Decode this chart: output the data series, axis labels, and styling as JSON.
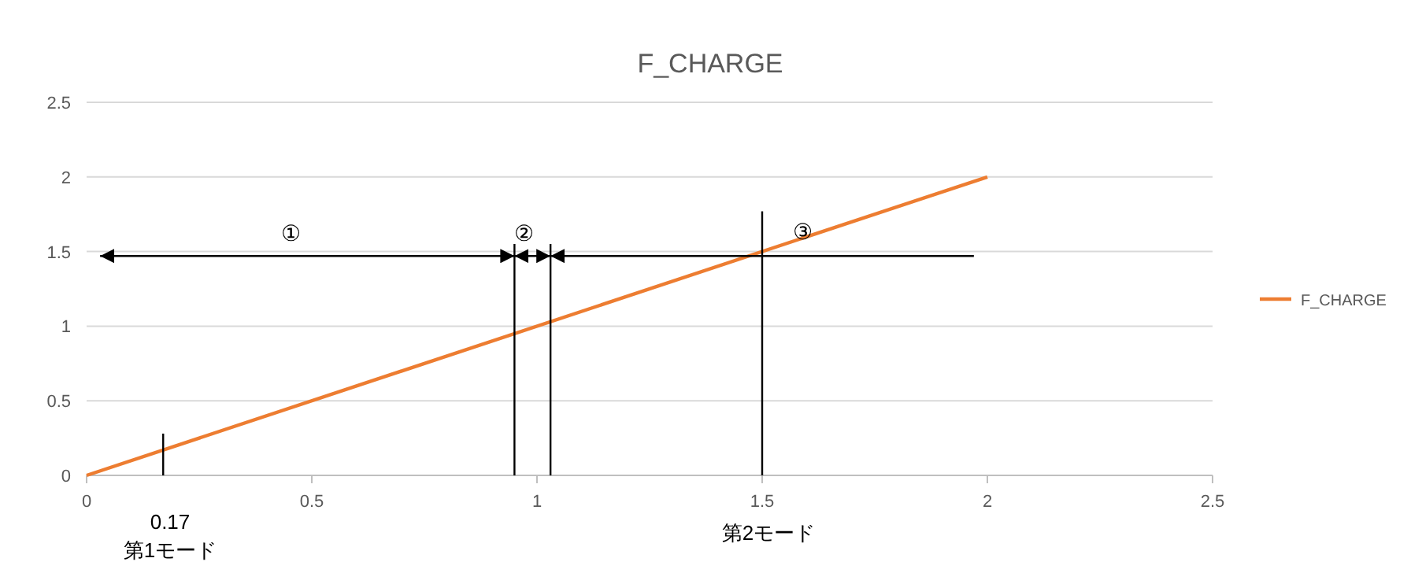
{
  "chart_data": {
    "type": "line",
    "title": "F_CHARGE",
    "x": [
      0,
      2
    ],
    "series": [
      {
        "name": "F_CHARGE",
        "color": "#ed7d31",
        "values": [
          0,
          2
        ]
      },
      {
        "color": "#000000",
        "x": [
          0.17,
          0.17
        ],
        "values": [
          0,
          0.28
        ]
      },
      {
        "color": "#000000",
        "x": [
          0.95,
          0.95
        ],
        "values": [
          0,
          1.55
        ]
      },
      {
        "color": "#000000",
        "x": [
          1.03,
          1.03
        ],
        "values": [
          0,
          1.55
        ]
      },
      {
        "color": "#000000",
        "x": [
          1.5,
          1.5
        ],
        "values": [
          0,
          1.77
        ]
      },
      {
        "color": "#000000",
        "x": [
          0.03,
          0.95
        ],
        "values": [
          1.47,
          1.47
        ]
      },
      {
        "color": "#000000",
        "x": [
          0.95,
          1.03
        ],
        "values": [
          1.47,
          1.47
        ]
      },
      {
        "color": "#000000",
        "x": [
          1.97,
          1.03
        ],
        "values": [
          1.47,
          1.47
        ]
      }
    ],
    "xlim": [
      0,
      2.5
    ],
    "ylim": [
      0,
      2.5
    ],
    "xticks": [
      0,
      0.5,
      1,
      1.5,
      2,
      2.5
    ],
    "yticks": [
      0,
      0.5,
      1,
      1.5,
      2,
      2.5
    ],
    "grid": "y",
    "legend": "right",
    "annotations": [
      "①",
      "②",
      "③",
      "0.17",
      "第1モード",
      "第2モード"
    ]
  }
}
